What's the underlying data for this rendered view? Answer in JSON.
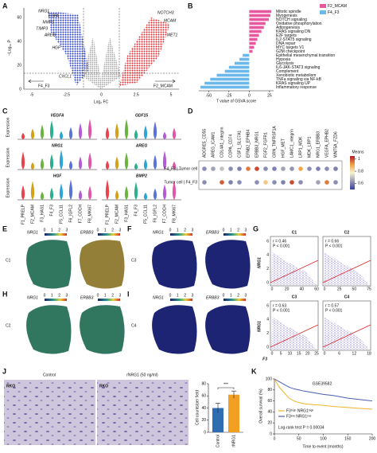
{
  "panel_labels": [
    "A",
    "B",
    "C",
    "D",
    "E",
    "F",
    "G",
    "H",
    "I",
    "J",
    "K"
  ],
  "volcano": {
    "y_label": "−Log₁₀ P",
    "x_label": "Log₂ FC",
    "left_group": "F4_F3",
    "right_group": "F2_MCAM",
    "x_tick_labels": [
      -5,
      -2.5,
      0,
      2.5,
      5
    ],
    "y_tick_labels": [
      0,
      20,
      40,
      60
    ],
    "genes_left": [
      "NRG1",
      "ESPA",
      "MMP1",
      "TIMP3",
      "AREG",
      "HGF",
      "CXCL1"
    ],
    "genes_right": [
      "NOTCH3",
      "MCAM",
      "MET1"
    ]
  },
  "violin": {
    "y_label": "Expression",
    "genes": [
      "VEGFA",
      "GDF15",
      "NRG1",
      "AREG",
      "HGF",
      "BMP2"
    ],
    "clusters": [
      "F1_PRELP",
      "F2_MCAM",
      "F3_HAS1",
      "F4_F3",
      "F5_CCL11",
      "F6_IGFL2",
      "F7_COCH",
      "F8_MKI67"
    ]
  },
  "spatial": {
    "colorbar_ticks": [
      0,
      1,
      2,
      3
    ],
    "panels": [
      {
        "cluster": "C1",
        "genes": [
          "NRG1",
          "ERBB3"
        ]
      },
      {
        "cluster": "C2",
        "genes": [
          "NRG1",
          "ERBB3"
        ]
      },
      {
        "cluster": "C3",
        "genes": [
          "NRG1",
          "ERBB3"
        ]
      },
      {
        "cluster": "C4",
        "genes": [
          "NRG1",
          "ERBB3"
        ]
      }
    ]
  },
  "correlation": {
    "y_label": "NRG1",
    "x_label": "F3",
    "panels": [
      {
        "title": "C1",
        "r": "r = 0.46",
        "p": "P < 0.001",
        "xticks": [
          0,
          20,
          40,
          60
        ],
        "yticks": [
          0,
          2,
          4,
          6
        ]
      },
      {
        "title": "C2",
        "r": "r = 0.66",
        "p": "P < 0.001",
        "xticks": [
          0,
          25,
          50,
          75
        ]
      },
      {
        "title": "C3",
        "r": "r = 0.63",
        "p": "P < 0.001",
        "xticks": [
          0,
          5,
          10,
          15,
          20,
          25
        ],
        "yticks": [
          0,
          2,
          4,
          6
        ]
      },
      {
        "title": "C4",
        "r": "r = 0.57",
        "p": "P < 0.001",
        "xticks": [
          0,
          6,
          12,
          18
        ]
      }
    ]
  },
  "assay": {
    "conditions": [
      "Control",
      "rNRG1 (50 ng/ml)"
    ],
    "cell_line": "RKO"
  },
  "chart_data": [
    {
      "type": "hbar",
      "x_label": "T value of GSVA score",
      "categories": [
        "Mitotic spindle",
        "Myogenesis",
        "NOTCH signaling",
        "Oxidative phosphorylation",
        "Adipogenesis",
        "KRAS signaling DN",
        "E2F targets",
        "IL2-STAT5 signaling",
        "DNA repair",
        "MYC targets V1",
        "G2M checkpoint",
        "Epithelial mesenchymal transition",
        "Hypoxia",
        "Glycolysis",
        "IL6-JAK-STAT3 signaling",
        "Complement",
        "Xenobiotic metabolism",
        "TNFa signaling via NF-kB",
        "KRAS signaling UP",
        "Inflammatory response"
      ],
      "series": [
        {
          "name": "F2_MCAM",
          "color": "#e8589e",
          "values": [
            27,
            26,
            24,
            20,
            18,
            15,
            12,
            10,
            8,
            6,
            4,
            null,
            null,
            null,
            null,
            null,
            null,
            null,
            null,
            null
          ]
        },
        {
          "name": "F4_F3",
          "color": "#6db8ea",
          "values": [
            null,
            null,
            null,
            null,
            null,
            null,
            null,
            null,
            null,
            null,
            null,
            -8,
            -12,
            -18,
            -25,
            -30,
            -40,
            -48,
            -55,
            -60
          ]
        }
      ],
      "xlim": [
        -62,
        30
      ],
      "xticks": [
        -50,
        -25,
        0,
        25
      ]
    },
    {
      "type": "dot",
      "color_label": "Means",
      "zlim": [
        0.5,
        1.05
      ],
      "zticks": [
        0.6,
        0.8,
        1
      ],
      "categories": [
        "ADGRE5_CD55",
        "AREG_ICAM1",
        "COL4A1_integrin",
        "COPA_CD74",
        "CSF1_SLC7A1",
        "EFNB2_EPHB4",
        "ERBB3_NRG1",
        "FGF2_FGFR1",
        "GRN_TNFRSF1A",
        "HGF_MET",
        "LAMC1_integrin",
        "LRP1_MDK",
        "MDK_LRP1",
        "NRG1_ERBB3",
        "VEGFA_EPHB2",
        "WNT5A_FZD6"
      ],
      "series": [
        {
          "name": "F4_F3 | Tumor cell",
          "values": [
            0.62,
            0.65,
            0.7,
            0.62,
            0.6,
            0.95,
            1.0,
            0.62,
            0.6,
            0.65,
            0.63,
            0.9,
            0.62,
            0.6,
            0.62,
            0.6
          ]
        },
        {
          "name": "Tumor cell | F4_F3",
          "values": [
            0.62,
            null,
            0.98,
            0.6,
            0.62,
            null,
            0.62,
            0.85,
            0.62,
            0.6,
            1.0,
            0.62,
            null,
            0.65,
            0.95,
            0.62
          ]
        }
      ]
    },
    {
      "type": "bar",
      "categories": [
        "Control",
        "rNRG1"
      ],
      "values": [
        40,
        62
      ],
      "errors": [
        8,
        6
      ],
      "colors": [
        "#2f6db3",
        "#f2a024"
      ],
      "y_label": "Cell counts/per field",
      "annotation": "***",
      "ylim": [
        0,
        80
      ],
      "yticks": [
        0,
        20,
        40,
        60,
        80
      ]
    },
    {
      "type": "line",
      "title": "GSE39582",
      "x_label": "Time to event (months)",
      "y_label": "Overall survival (%)",
      "annotation": "Log-rank test P = 0.00034",
      "x": [
        0,
        10,
        20,
        30,
        40,
        50,
        60,
        80,
        100,
        120,
        150,
        200
      ],
      "series": [
        {
          "name": "F3ʰⁱᵍʰ NRG1ʰⁱᵍʰ",
          "color": "#f0b429",
          "values": [
            100,
            85,
            75,
            65,
            60,
            57,
            55,
            53,
            52,
            50,
            48,
            45
          ]
        },
        {
          "name": "F3ˡᵒʷ NRG1ˡᵒʷ",
          "color": "#4a5fb0",
          "values": [
            100,
            95,
            90,
            85,
            82,
            80,
            78,
            75,
            72,
            70,
            65,
            60
          ]
        }
      ],
      "xlim": [
        0,
        200
      ],
      "ylim": [
        0,
        100
      ],
      "xticks": [
        0,
        50,
        100,
        150,
        200
      ],
      "yticks": [
        0,
        20,
        40,
        60,
        80,
        100
      ]
    }
  ]
}
